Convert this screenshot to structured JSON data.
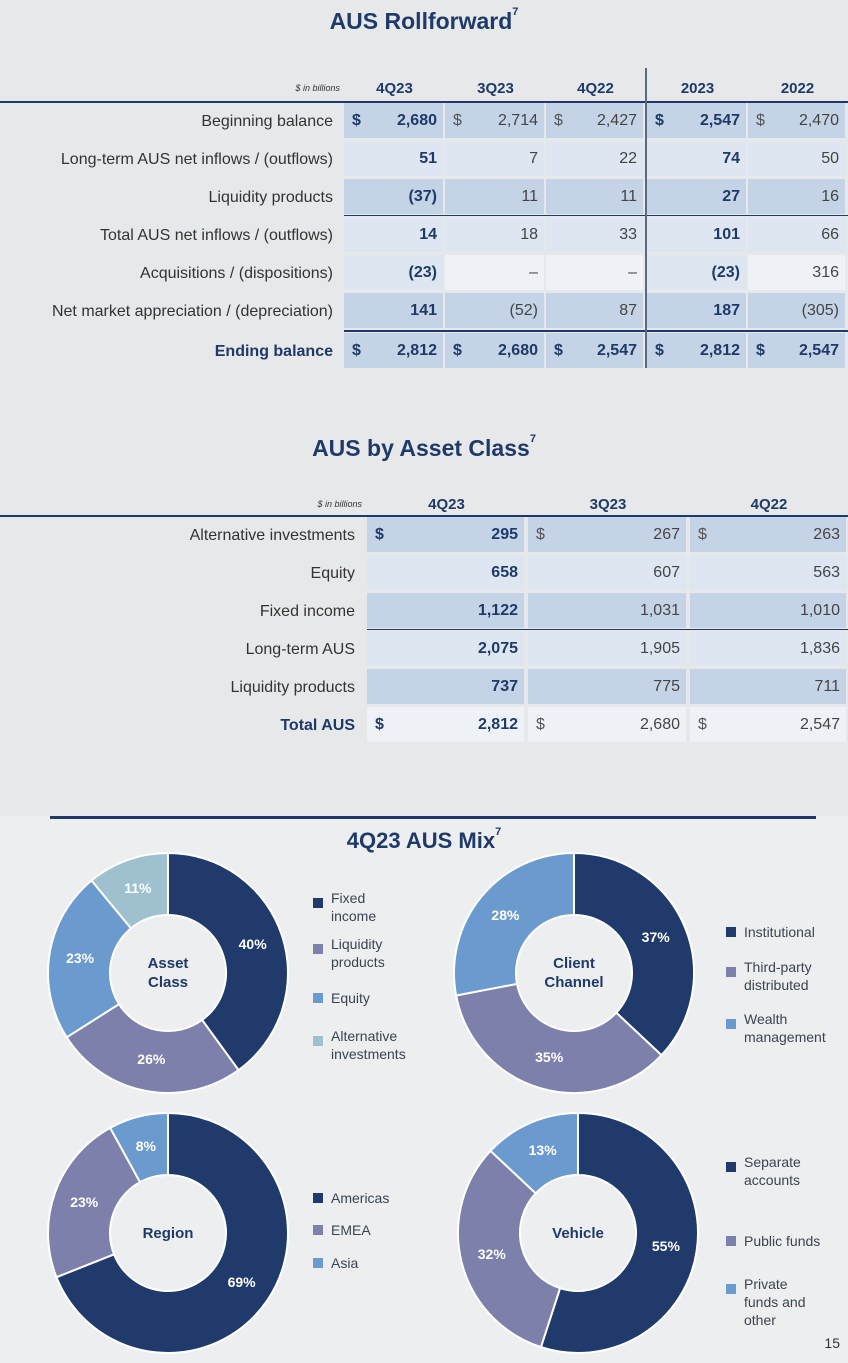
{
  "rollforward": {
    "title": "AUS Rollforward",
    "footnote": "7",
    "unit": "$ in billions",
    "columns": [
      "4Q23",
      "3Q23",
      "4Q22",
      "2023",
      "2022"
    ],
    "rows": [
      {
        "label": "Beginning balance",
        "bold": false,
        "dollar": true,
        "values": [
          "2,680",
          "2,714",
          "2,427",
          "2,547",
          "2,470"
        ]
      },
      {
        "label": "Long-term AUS net inflows / (outflows)",
        "bold": false,
        "dollar": false,
        "values": [
          "51",
          "7",
          "22",
          "74",
          "50"
        ]
      },
      {
        "label": "Liquidity products",
        "bold": false,
        "dollar": false,
        "values": [
          "(37)",
          "11",
          "11",
          "27",
          "16"
        ]
      },
      {
        "label": "Total AUS net inflows / (outflows)",
        "bold": false,
        "dollar": false,
        "values": [
          "14",
          "18",
          "33",
          "101",
          "66"
        ]
      },
      {
        "label": "Acquisitions / (dispositions)",
        "bold": false,
        "dollar": false,
        "values": [
          "(23)",
          "–",
          "–",
          "(23)",
          "316"
        ]
      },
      {
        "label": "Net market appreciation / (depreciation)",
        "bold": false,
        "dollar": false,
        "values": [
          "141",
          "(52)",
          "87",
          "187",
          "(305)"
        ]
      },
      {
        "label": "Ending balance",
        "bold": true,
        "dollar": true,
        "values": [
          "2,812",
          "2,680",
          "2,547",
          "2,812",
          "2,547"
        ]
      }
    ]
  },
  "asset_class": {
    "title": "AUS by Asset Class",
    "footnote": "7",
    "unit": "$ in billions",
    "columns": [
      "4Q23",
      "3Q23",
      "4Q22"
    ],
    "rows": [
      {
        "label": "Alternative investments",
        "bold": false,
        "dollar": true,
        "values": [
          "295",
          "267",
          "263"
        ]
      },
      {
        "label": "Equity",
        "bold": false,
        "dollar": false,
        "values": [
          "658",
          "607",
          "563"
        ]
      },
      {
        "label": "Fixed income",
        "bold": false,
        "dollar": false,
        "values": [
          "1,122",
          "1,031",
          "1,010"
        ]
      },
      {
        "label": "Long-term AUS",
        "bold": false,
        "dollar": false,
        "values": [
          "2,075",
          "1,905",
          "1,836"
        ]
      },
      {
        "label": "Liquidity products",
        "bold": false,
        "dollar": false,
        "values": [
          "737",
          "775",
          "711"
        ]
      },
      {
        "label": "Total AUS",
        "bold": true,
        "dollar": true,
        "values": [
          "2,812",
          "2,680",
          "2,547"
        ]
      }
    ]
  },
  "currency_symbol": "$",
  "mix": {
    "title": "4Q23 AUS Mix",
    "footnote": "7",
    "colors": {
      "navy": "#1f3a6b",
      "purple": "#7e80ac",
      "blue": "#6b9acf",
      "teal": "#9fc1cf"
    },
    "chart_data": [
      {
        "type": "pie",
        "center_label": [
          "Asset",
          "Class"
        ],
        "slices": [
          {
            "name": "Fixed income",
            "legend": [
              "Fixed",
              "income"
            ],
            "value": 40,
            "label": "40%",
            "color": "#1f3a6b"
          },
          {
            "name": "Liquidity products",
            "legend": [
              "Liquidity",
              "products"
            ],
            "value": 26,
            "label": "26%",
            "color": "#7e80ac"
          },
          {
            "name": "Equity",
            "legend": [
              "Equity"
            ],
            "value": 23,
            "label": "23%",
            "color": "#6b9acf"
          },
          {
            "name": "Alternative investments",
            "legend": [
              "Alternative",
              "investments"
            ],
            "value": 11,
            "label": "11%",
            "color": "#9fc1cf"
          }
        ]
      },
      {
        "type": "pie",
        "center_label": [
          "Client",
          "Channel"
        ],
        "slices": [
          {
            "name": "Institutional",
            "legend": [
              "Institutional"
            ],
            "value": 37,
            "label": "37%",
            "color": "#1f3a6b"
          },
          {
            "name": "Third-party distributed",
            "legend": [
              "Third-party",
              "distributed"
            ],
            "value": 35,
            "label": "35%",
            "color": "#7e80ac"
          },
          {
            "name": "Wealth management",
            "legend": [
              "Wealth",
              "management"
            ],
            "value": 28,
            "label": "28%",
            "color": "#6b9acf"
          }
        ]
      },
      {
        "type": "pie",
        "center_label": [
          "Region"
        ],
        "slices": [
          {
            "name": "Americas",
            "legend": [
              "Americas"
            ],
            "value": 69,
            "label": "69%",
            "color": "#1f3a6b"
          },
          {
            "name": "EMEA",
            "legend": [
              "EMEA"
            ],
            "value": 23,
            "label": "23%",
            "color": "#7e80ac"
          },
          {
            "name": "Asia",
            "legend": [
              "Asia"
            ],
            "value": 8,
            "label": "8%",
            "color": "#6b9acf"
          }
        ]
      },
      {
        "type": "pie",
        "center_label": [
          "Vehicle"
        ],
        "slices": [
          {
            "name": "Separate accounts",
            "legend": [
              "Separate",
              "accounts"
            ],
            "value": 55,
            "label": "55%",
            "color": "#1f3a6b"
          },
          {
            "name": "Public funds",
            "legend": [
              "Public funds"
            ],
            "value": 32,
            "label": "32%",
            "color": "#7e80ac"
          },
          {
            "name": "Private funds and other",
            "legend": [
              "Private",
              "funds and",
              "other"
            ],
            "value": 13,
            "label": "13%",
            "color": "#6b9acf"
          }
        ]
      }
    ]
  },
  "page_number": "15"
}
